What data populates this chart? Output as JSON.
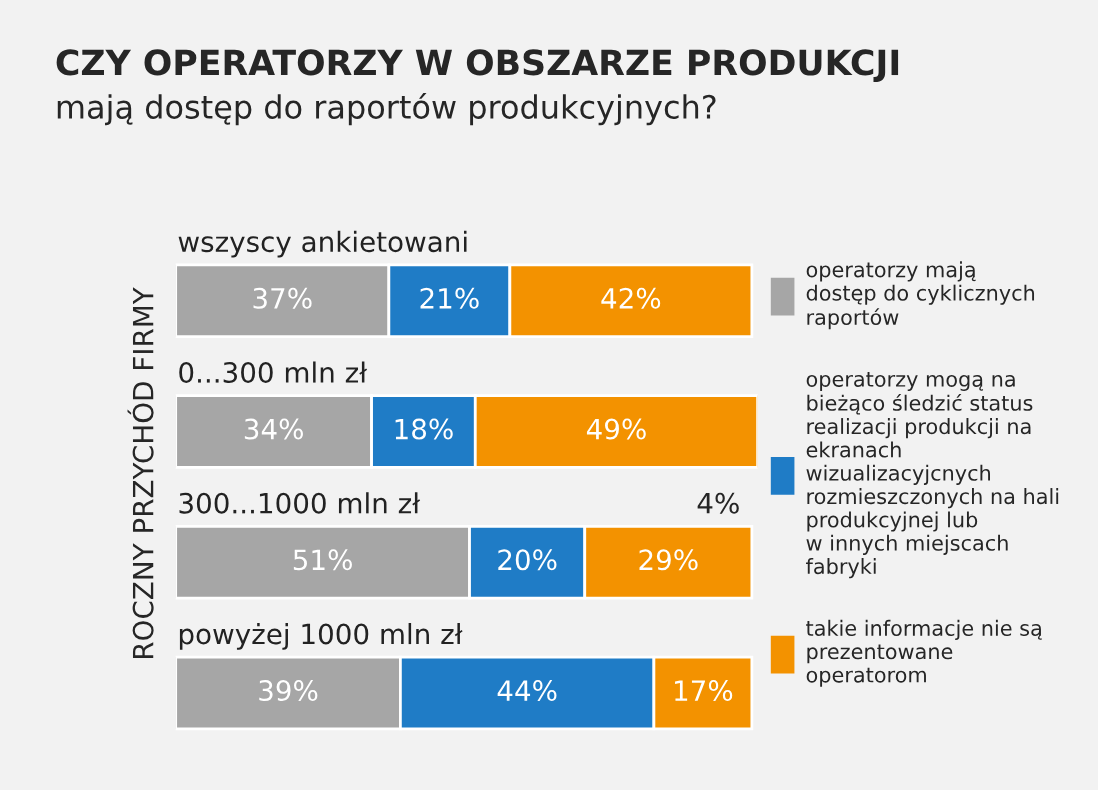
{
  "chart_data": {
    "type": "bar",
    "orientation": "horizontal",
    "stacked": true,
    "title": "CZY OPERATORZY W OBSZARZE PRODUKCJI",
    "subtitle": "mają dostęp do raportów produkcyjnych?",
    "ylabel": "ROCZNY PRZYCHÓD FIRMY",
    "categories": [
      "wszyscy ankietowani",
      "0...300 mln zł",
      "300...1000 mln zł",
      "powyżej 1000 mln zł"
    ],
    "series": [
      {
        "name": "operatorzy mają\ndostęp do cyklicznych\nraportów",
        "color": "#a6a6a6",
        "values": [
          37,
          34,
          51,
          39
        ],
        "value_labels": [
          "37%",
          "34%",
          "51%",
          "39%"
        ]
      },
      {
        "name": "operatorzy mogą na\nbieżąco śledzić status\nrealizacji produkcji na\nekranach\nwizualizacyjcnych\nrozmieszczonych na hali\nprodukcyjnej lub\nw innych miejscach\nfabryki",
        "color": "#1f7cc6",
        "values": [
          21,
          18,
          20,
          44
        ],
        "value_labels": [
          "21%",
          "18%",
          "20%",
          "44%"
        ]
      },
      {
        "name": "takie informacje nie są\nprezentowane\noperatorom",
        "color": "#f39200",
        "values": [
          42,
          49,
          29,
          17
        ],
        "value_labels": [
          "42%",
          "49%",
          "29%",
          "17%"
        ]
      }
    ],
    "legend": "right",
    "tick_labels": "y",
    "annotations": [
      {
        "text": "4%",
        "x": 100,
        "y": "300...1000 mln zł"
      }
    ]
  }
}
